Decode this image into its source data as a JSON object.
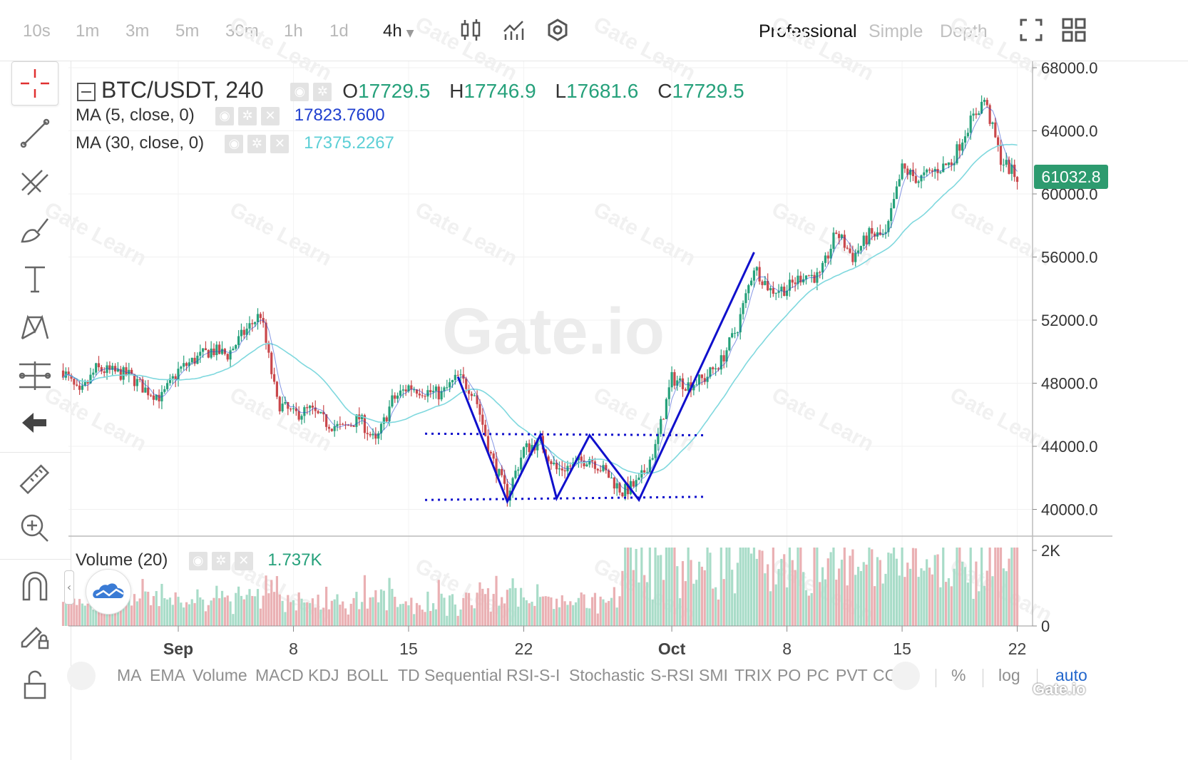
{
  "toolbar": {
    "timeframes": [
      "10s",
      "1m",
      "3m",
      "5m",
      "30m",
      "1h",
      "1d"
    ],
    "active_timeframe": "4h",
    "modes": [
      "Professional",
      "Simple",
      "Depth"
    ],
    "active_mode": "Professional"
  },
  "legend": {
    "symbol": "BTC/USDT, 240",
    "o_label": "O",
    "o_value": "17729.5",
    "h_label": "H",
    "h_value": "17746.9",
    "l_label": "L",
    "l_value": "17681.6",
    "c_label": "C",
    "c_value": "17729.5",
    "ma5_label": "MA (5, close, 0)",
    "ma5_value": "17823.7600",
    "ma30_label": "MA (30, close, 0)",
    "ma30_value": "17375.2267",
    "volume_label": "Volume (20)",
    "volume_value": "1.737K"
  },
  "colors": {
    "up": "#26a17b",
    "down": "#c9474b",
    "ma5": "#1f3fcf",
    "ma30": "#7fd8de",
    "pattern": "#1010cc",
    "price_badge": "#2d9b6f",
    "active_option": "#2266cc"
  },
  "watermark": "Gate.io",
  "watermark_small": "Gate Learn",
  "corner_logo": "Gate.io",
  "indicators": [
    "MA",
    "EMA",
    "Volume",
    "MACD",
    "KDJ",
    "BOLL",
    "TD Sequential",
    "RSI-S-I",
    "Stochastic",
    "S-RSI",
    "SMI",
    "TRIX",
    "PO",
    "PC",
    "PVT",
    "CC"
  ],
  "options": {
    "percent": "%",
    "log": "log",
    "auto": "auto"
  },
  "left_tools": [
    "crosshair-icon",
    "line-icon",
    "channel-icon",
    "brush-icon",
    "text-icon",
    "pattern-icon",
    "fib-icon",
    "back-arrow-icon",
    "ruler-icon",
    "zoom-in-icon",
    "magnet-icon",
    "pencil-lock-icon",
    "lock-icon"
  ],
  "chart_data": {
    "type": "candlestick",
    "symbol": "BTC/USDT",
    "interval": "240",
    "y_ticks": [
      "68000.0",
      "64000.0",
      "60000.0",
      "56000.0",
      "52000.0",
      "48000.0",
      "44000.0",
      "40000.0"
    ],
    "y_tick_values": [
      68000,
      64000,
      60000,
      56000,
      52000,
      48000,
      44000,
      40000
    ],
    "ylim": [
      38000,
      68800
    ],
    "x_ticks": [
      "Sep",
      "8",
      "15",
      "22",
      "Oct",
      "8",
      "15",
      "22"
    ],
    "x_tick_dates": [
      "2021-09-01",
      "2021-09-08",
      "2021-09-15",
      "2021-09-22",
      "2021-10-01",
      "2021-10-08",
      "2021-10-15",
      "2021-10-22"
    ],
    "last_price": "61032.8",
    "volume_ticks": [
      "2K",
      "0"
    ],
    "volume_ylim": [
      0,
      2000
    ],
    "price_path": [
      [
        "2021-08-25",
        48800
      ],
      [
        "2021-08-26",
        47200
      ],
      [
        "2021-08-27",
        48900
      ],
      [
        "2021-08-28",
        48700
      ],
      [
        "2021-08-29",
        48500
      ],
      [
        "2021-08-30",
        47600
      ],
      [
        "2021-08-31",
        47100
      ],
      [
        "2021-09-01",
        48800
      ],
      [
        "2021-09-02",
        49500
      ],
      [
        "2021-09-03",
        50100
      ],
      [
        "2021-09-04",
        49800
      ],
      [
        "2021-09-05",
        51200
      ],
      [
        "2021-09-06",
        52400
      ],
      [
        "2021-09-07",
        46800
      ],
      [
        "2021-09-08",
        46000
      ],
      [
        "2021-09-09",
        46300
      ],
      [
        "2021-09-10",
        45500
      ],
      [
        "2021-09-11",
        45100
      ],
      [
        "2021-09-12",
        45800
      ],
      [
        "2021-09-13",
        44200
      ],
      [
        "2021-09-14",
        46900
      ],
      [
        "2021-09-15",
        47800
      ],
      [
        "2021-09-16",
        47500
      ],
      [
        "2021-09-17",
        47300
      ],
      [
        "2021-09-18",
        48400
      ],
      [
        "2021-09-19",
        47400
      ],
      [
        "2021-09-20",
        43400
      ],
      [
        "2021-09-21",
        40900
      ],
      [
        "2021-09-22",
        43800
      ],
      [
        "2021-09-23",
        44300
      ],
      [
        "2021-09-24",
        42500
      ],
      [
        "2021-09-25",
        42800
      ],
      [
        "2021-09-26",
        43300
      ],
      [
        "2021-09-27",
        42300
      ],
      [
        "2021-09-28",
        41100
      ],
      [
        "2021-09-29",
        41700
      ],
      [
        "2021-09-30",
        43900
      ],
      [
        "2021-10-01",
        48300
      ],
      [
        "2021-10-02",
        47900
      ],
      [
        "2021-10-03",
        48300
      ],
      [
        "2021-10-04",
        49400
      ],
      [
        "2021-10-05",
        51600
      ],
      [
        "2021-10-06",
        55400
      ],
      [
        "2021-10-07",
        53900
      ],
      [
        "2021-10-08",
        54000
      ],
      [
        "2021-10-09",
        54900
      ],
      [
        "2021-10-10",
        54700
      ],
      [
        "2021-10-11",
        57600
      ],
      [
        "2021-10-12",
        56000
      ],
      [
        "2021-10-13",
        57400
      ],
      [
        "2021-10-14",
        57300
      ],
      [
        "2021-10-15",
        61600
      ],
      [
        "2021-10-16",
        60900
      ],
      [
        "2021-10-17",
        61500
      ],
      [
        "2021-10-18",
        62000
      ],
      [
        "2021-10-19",
        64300
      ],
      [
        "2021-10-20",
        66000
      ],
      [
        "2021-10-21",
        62200
      ],
      [
        "2021-10-22",
        61032
      ]
    ],
    "pattern_lines": {
      "w_pattern": [
        [
          "2021-09-18",
          48400
        ],
        [
          "2021-09-21",
          40500
        ],
        [
          "2021-09-23",
          44700
        ],
        [
          "2021-09-24",
          40700
        ],
        [
          "2021-09-26",
          44700
        ],
        [
          "2021-09-29",
          40600
        ],
        [
          "2021-10-06",
          56300
        ]
      ],
      "resistance": [
        [
          "2021-09-16",
          44800
        ],
        [
          "2021-10-03",
          44700
        ]
      ],
      "support": [
        [
          "2021-09-16",
          40600
        ],
        [
          "2021-10-03",
          40800
        ]
      ]
    }
  }
}
